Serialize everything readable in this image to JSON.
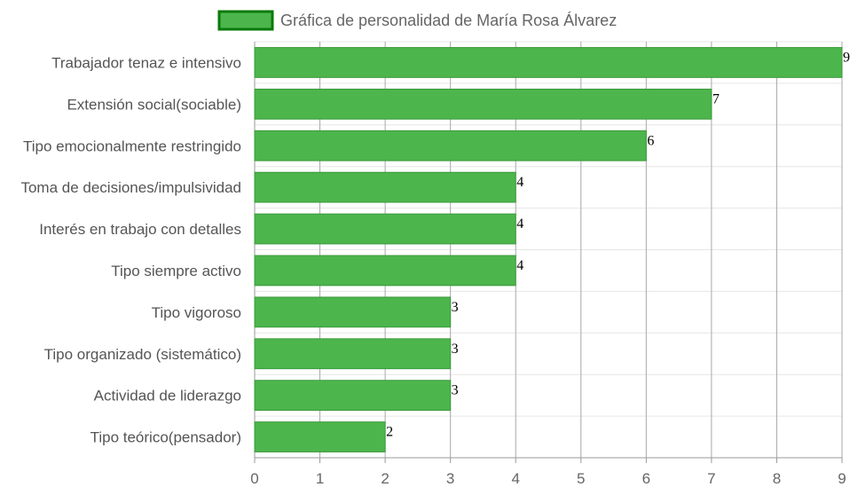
{
  "chart_data": {
    "type": "bar",
    "orientation": "horizontal",
    "legend": {
      "label": "Gráfica de personalidad de María Rosa Álvarez",
      "position": "top"
    },
    "categories": [
      "Trabajador tenaz e intensivo",
      "Extensión social(sociable)",
      "Tipo emocionalmente restringido",
      "Toma de decisiones/impulsividad",
      "Interés en trabajo con detalles",
      "Tipo siempre activo",
      "Tipo vigoroso",
      "Tipo organizado (sistemático)",
      "Actividad de liderazgo",
      "Tipo teórico(pensador)"
    ],
    "values": [
      9,
      7,
      6,
      4,
      4,
      4,
      3,
      3,
      3,
      2
    ],
    "xlim": [
      0,
      9
    ],
    "xticks": [
      0,
      1,
      2,
      3,
      4,
      5,
      6,
      7,
      8,
      9
    ],
    "grid": true,
    "data_labels": true,
    "colors": {
      "bar": "#4cb54c",
      "bar_border": "#3a9a3a",
      "legend_border": "#0a7a0a"
    }
  }
}
